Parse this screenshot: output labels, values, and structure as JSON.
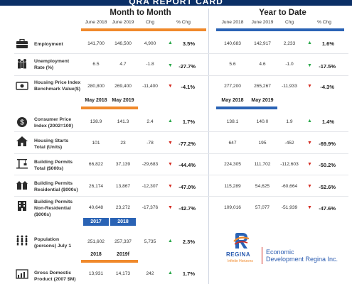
{
  "header": {
    "title": "QRA REPORT CARD",
    "mtm_title": "Month to Month",
    "ytd_title": "Year to Date",
    "mtm_cols": [
      "June 2018",
      "June 2019",
      "Chg",
      "% Chg"
    ],
    "ytd_cols": [
      "June 2018",
      "June 2019",
      "Chg",
      "% Chg"
    ]
  },
  "rows": [
    {
      "label": "Employment",
      "icon": "briefcase-icon",
      "mtm": [
        "141,700",
        "146,500",
        "4,900"
      ],
      "mtm_dir": "up",
      "mtm_pct": "3.5%",
      "ytd": [
        "140,683",
        "142,917",
        "2,233"
      ],
      "ytd_dir": "up",
      "ytd_pct": "1.6%"
    },
    {
      "label": "Unemployment Rate (%)",
      "icon": "people-icon",
      "mtm": [
        "6.5",
        "4.7",
        "-1.8"
      ],
      "mtm_dir": "down-good",
      "mtm_pct": "-27.7%",
      "ytd": [
        "5.6",
        "4.6",
        "-1.0"
      ],
      "ytd_dir": "down-good",
      "ytd_pct": "-17.5%"
    },
    {
      "label": "Housing Price Index Benchmark Value($)",
      "icon": "money-icon",
      "mtm": [
        "280,800",
        "269,400",
        "-11,400"
      ],
      "mtm_dir": "down",
      "mtm_pct": "-4.1%",
      "ytd": [
        "277,200",
        "265,267",
        "-11,933"
      ],
      "ytd_dir": "down",
      "ytd_pct": "-4.3%"
    }
  ],
  "period2": {
    "mtm": [
      "May 2018",
      "May 2019"
    ],
    "ytd": [
      "May 2018",
      "May 2019"
    ]
  },
  "rows2": [
    {
      "label": "Consumer Price Index (2002=100)",
      "icon": "dollar-coin-icon",
      "mtm": [
        "138.9",
        "141.3",
        "2.4"
      ],
      "mtm_dir": "up",
      "mtm_pct": "1.7%",
      "ytd": [
        "138.1",
        "140.0",
        "1.9"
      ],
      "ytd_dir": "up",
      "ytd_pct": "1.4%"
    },
    {
      "label": "Housing Starts Total (Units)",
      "icon": "house-icon",
      "mtm": [
        "101",
        "23",
        "-78"
      ],
      "mtm_dir": "down",
      "mtm_pct": "-77.2%",
      "ytd": [
        "647",
        "195",
        "-452"
      ],
      "ytd_dir": "down",
      "ytd_pct": "-69.9%"
    },
    {
      "label": "Building Permits Total ($000s)",
      "icon": "crane-icon",
      "mtm": [
        "66,822",
        "37,139",
        "-29,683"
      ],
      "mtm_dir": "down",
      "mtm_pct": "-44.4%",
      "ytd": [
        "224,305",
        "111,702",
        "-112,603"
      ],
      "ytd_dir": "down",
      "ytd_pct": "-50.2%"
    },
    {
      "label": "Building Permits Residential ($000s)",
      "icon": "residential-icon",
      "mtm": [
        "26,174",
        "13,867",
        "-12,307"
      ],
      "mtm_dir": "down",
      "mtm_pct": "-47.0%",
      "ytd": [
        "115,289",
        "54,625",
        "-60,664"
      ],
      "ytd_dir": "down",
      "ytd_pct": "-52.6%"
    },
    {
      "label": "Building Permits Non-Residential ($000s)",
      "icon": "office-building-icon",
      "mtm": [
        "40,648",
        "23,272",
        "-17,376"
      ],
      "mtm_dir": "down",
      "mtm_pct": "-42.7%",
      "ytd": [
        "109,016",
        "57,077",
        "-51,939"
      ],
      "ytd_dir": "down",
      "ytd_pct": "-47.6%"
    }
  ],
  "period3": [
    "2017",
    "2018"
  ],
  "pop": {
    "label": "Population (persons) July 1",
    "icon": "population-icon",
    "vals": [
      "251,602",
      "257,337",
      "5,735"
    ],
    "dir": "up",
    "pct": "2.3%"
  },
  "period4": [
    "2018",
    "2019f"
  ],
  "gdp": {
    "label": "Gross Domestic Product (2007 $M)",
    "icon": "gdp-icon",
    "vals": [
      "13,931",
      "14,173",
      "242"
    ],
    "dir": "up",
    "pct": "1.7%"
  },
  "logo": {
    "wordmark": "REGINA",
    "tagline": "Infinite Horizons",
    "org_line1": "Economic",
    "org_line2": "Development Regina Inc."
  },
  "colors": {
    "orange": "#f0892b",
    "blue": "#2a63b5",
    "navy": "#0b2f66",
    "up": "#2ba84a",
    "down": "#d42a20"
  }
}
